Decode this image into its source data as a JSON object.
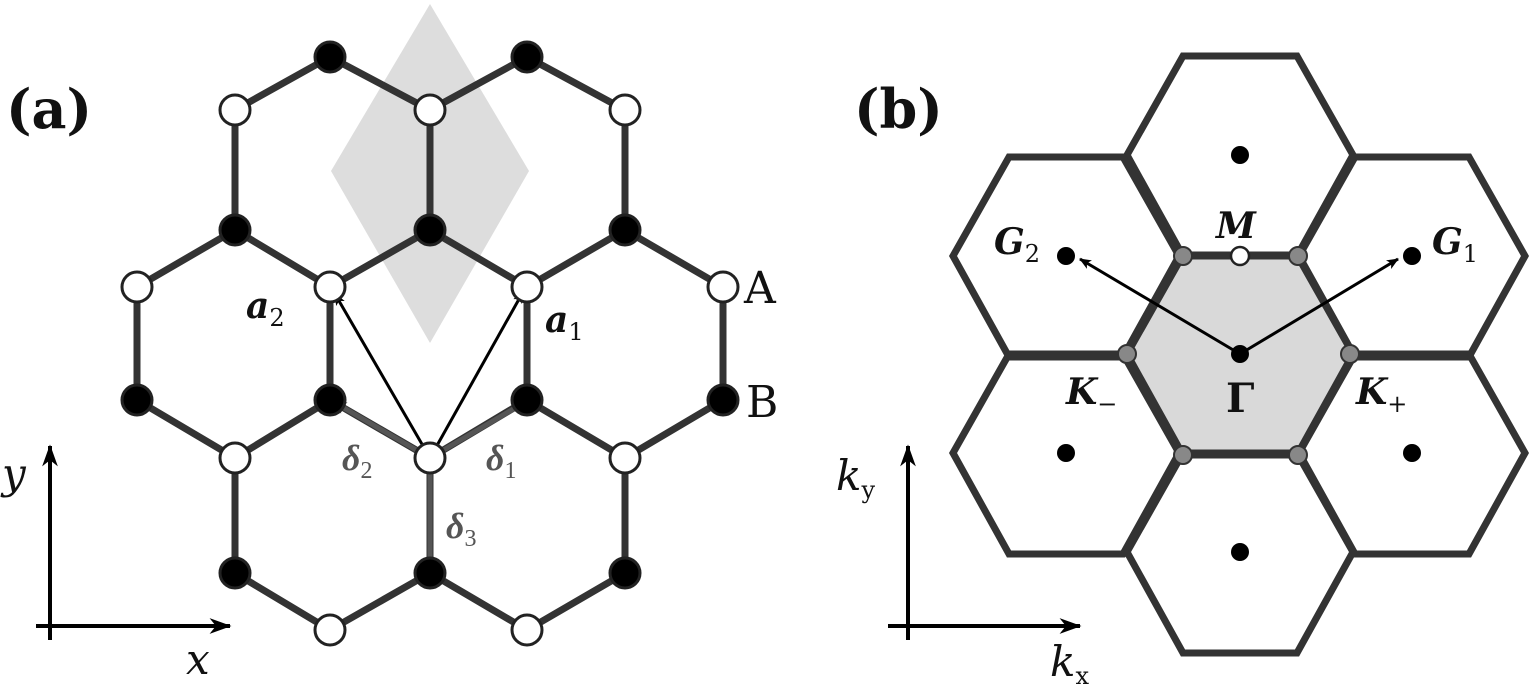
{
  "panel_a": {
    "label": "(a)",
    "sublattice_a_label": "A",
    "sublattice_b_label": "B",
    "vectors": {
      "a1": {
        "main": "a",
        "sub": "1"
      },
      "a2": {
        "main": "a",
        "sub": "2"
      },
      "d1": {
        "main": "δ",
        "sub": "1"
      },
      "d2": {
        "main": "δ",
        "sub": "2"
      },
      "d3": {
        "main": "δ",
        "sub": "3"
      }
    },
    "axes": {
      "x": "x",
      "y": "y"
    }
  },
  "panel_b": {
    "label": "(b)",
    "points": {
      "gamma": "Γ",
      "m": "M",
      "g1": {
        "main": "G",
        "sub": "1"
      },
      "g2": {
        "main": "G",
        "sub": "2"
      },
      "k_plus": {
        "main": "K",
        "sub": "+"
      },
      "k_minus": {
        "main": "K",
        "sub": "−"
      }
    },
    "axes": {
      "kx": {
        "main": "k",
        "sub": "x"
      },
      "ky": {
        "main": "k",
        "sub": "y"
      }
    }
  },
  "colors": {
    "bond": "#333333",
    "site_a_fill": "#ffffff",
    "site_b_fill": "#000000",
    "unit_cell": "#dddddd",
    "bz_fill": "#d9d9d9",
    "k_point": "#888888",
    "delta_arrow": "#555555",
    "arrow": "#000000"
  }
}
